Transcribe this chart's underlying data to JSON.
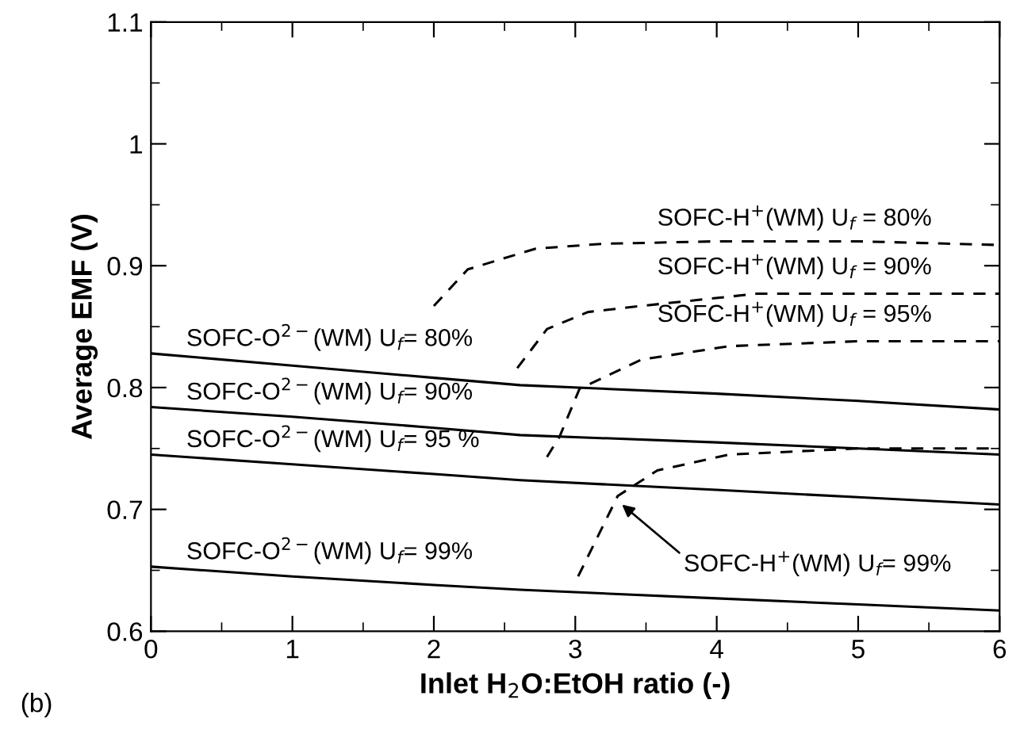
{
  "chart_data": {
    "type": "line",
    "xlabel": "Inlet H$_{2}$O:EtOH ratio (-)",
    "ylabel": "Average EMF (V)",
    "xlim": [
      0,
      6
    ],
    "ylim": [
      0.6,
      1.1
    ],
    "xticks": [
      0,
      1,
      2,
      3,
      4,
      5,
      6
    ],
    "yticks": [
      0.6,
      0.7,
      0.8,
      0.9,
      {
        "value": 1.0,
        "label": "1"
      },
      1.1
    ],
    "grid": false,
    "series": [
      {
        "color": "#000000",
        "line_style": "solid",
        "x": [
          0,
          1,
          2,
          2.61,
          4,
          5,
          6
        ],
        "values": [
          0.828,
          0.818,
          0.808,
          0.802,
          0.795,
          0.789,
          0.782
        ]
      },
      {
        "color": "#000000",
        "line_style": "solid",
        "x": [
          0,
          1,
          2,
          2.61,
          4,
          5,
          6
        ],
        "values": [
          0.784,
          0.776,
          0.767,
          0.761,
          0.755,
          0.75,
          0.745
        ]
      },
      {
        "color": "#000000",
        "line_style": "solid",
        "x": [
          0,
          1,
          2,
          2.61,
          4,
          5,
          6
        ],
        "values": [
          0.745,
          0.737,
          0.729,
          0.724,
          0.716,
          0.71,
          0.704
        ]
      },
      {
        "color": "#000000",
        "line_style": "solid",
        "x": [
          0,
          1,
          2,
          2.61,
          4,
          5,
          6
        ],
        "values": [
          0.653,
          0.645,
          0.638,
          0.634,
          0.627,
          0.622,
          0.617
        ]
      },
      {
        "color": "#000000",
        "line_style": "dashed",
        "x": [
          2.0,
          2.24,
          2.72,
          3.2,
          4.0,
          5.0,
          6.0
        ],
        "values": [
          0.867,
          0.897,
          0.914,
          0.918,
          0.92,
          0.92,
          0.917
        ]
      },
      {
        "color": "#000000",
        "line_style": "dashed",
        "x": [
          2.59,
          2.8,
          3.09,
          3.47,
          4.28,
          5.0,
          6.0
        ],
        "values": [
          0.816,
          0.848,
          0.862,
          0.867,
          0.877,
          0.877,
          0.877
        ]
      },
      {
        "color": "#000000",
        "line_style": "dashed",
        "x": [
          2.8,
          2.89,
          3.03,
          3.47,
          4.09,
          5.0,
          6.0
        ],
        "values": [
          0.743,
          0.76,
          0.799,
          0.823,
          0.834,
          0.838,
          0.838
        ]
      },
      {
        "color": "#000000",
        "line_style": "dashed",
        "x": [
          3.02,
          3.3,
          3.58,
          4.09,
          5.0,
          6.0
        ],
        "values": [
          0.645,
          0.711,
          0.732,
          0.745,
          0.75,
          0.75
        ]
      }
    ],
    "annotations": [
      "SOFC-O$^{2−}$(WM) U$_{f}$= 80%",
      "SOFC-O$^{2−}$(WM) U$_{f}$= 90%",
      "SOFC-O$^{2−}$(WM) U$_{f}$= 95 %",
      "SOFC-O$^{2−}$(WM) U$_{f}$= 99%",
      "SOFC-H$^{+}$(WM) U$_{f}$ = 80%",
      "SOFC-H$^{+}$(WM) U$_{f}$ = 90%",
      "SOFC-H$^{+}$(WM) U$_{f}$ = 95%",
      {
        "text": "SOFC-H$^{+}$(WM) U$_{f}$= 99%",
        "x": 3.33,
        "y": 0.704
      },
      "(b)"
    ]
  }
}
